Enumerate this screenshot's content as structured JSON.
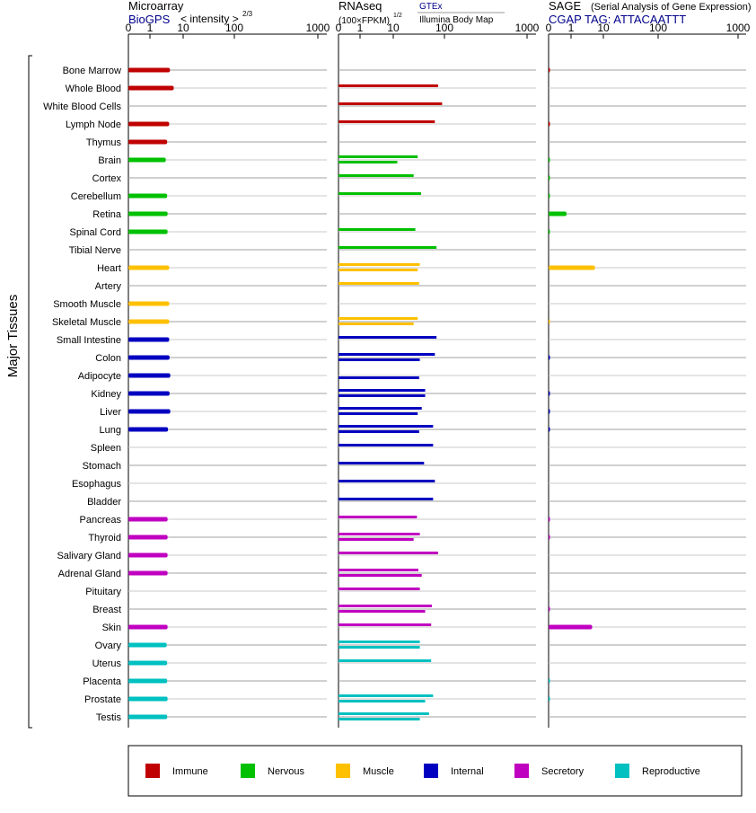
{
  "panels": {
    "microarray": {
      "title": "Microarray",
      "source": "BioGPS",
      "metric": "< intensity >",
      "exponent": "2/3"
    },
    "rnaseq": {
      "title": "RNAseq",
      "metric": "(100×FPKM)",
      "exponent": "1/2",
      "source_1": "GTEx",
      "source_2": "Illumina Body Map"
    },
    "sage": {
      "title": "SAGE",
      "subtitle": "(Serial Analysis of Gene Expression)",
      "tag": "CGAP TAG: ATTACAATTT"
    }
  },
  "axis_ticks": [
    "0",
    "1",
    "10",
    "100",
    "1000"
  ],
  "y_group_label": "Major Tissues",
  "colors": {
    "Immune": "#c00000",
    "Nervous": "#00c000",
    "Muscle": "#ffc000",
    "Internal": "#0000c0",
    "Secretory": "#c000c0",
    "Reproductive": "#00c0c0"
  },
  "legend": [
    "Immune",
    "Nervous",
    "Muscle",
    "Internal",
    "Secretory",
    "Reproductive"
  ],
  "chart_data": {
    "type": "bar",
    "orientation": "horizontal",
    "x_scale": "log-like (0, 1, 10, 100, 1000)",
    "xlim": [
      0,
      1000
    ],
    "categories": [
      "Bone Marrow",
      "Whole Blood",
      "White Blood Cells",
      "Lymph Node",
      "Thymus",
      "Brain",
      "Cortex",
      "Cerebellum",
      "Retina",
      "Spinal Cord",
      "Tibial Nerve",
      "Heart",
      "Artery",
      "Smooth Muscle",
      "Skeletal Muscle",
      "Small Intestine",
      "Colon",
      "Adipocyte",
      "Kidney",
      "Liver",
      "Lung",
      "Spleen",
      "Stomach",
      "Esophagus",
      "Bladder",
      "Pancreas",
      "Thyroid",
      "Salivary Gland",
      "Adrenal Gland",
      "Pituitary",
      "Breast",
      "Skin",
      "Ovary",
      "Uterus",
      "Placenta",
      "Prostate",
      "Testis"
    ],
    "groups": [
      "Immune",
      "Immune",
      "Immune",
      "Immune",
      "Immune",
      "Nervous",
      "Nervous",
      "Nervous",
      "Nervous",
      "Nervous",
      "Nervous",
      "Muscle",
      "Muscle",
      "Muscle",
      "Muscle",
      "Internal",
      "Internal",
      "Internal",
      "Internal",
      "Internal",
      "Internal",
      "Internal",
      "Internal",
      "Internal",
      "Internal",
      "Secretory",
      "Secretory",
      "Secretory",
      "Secretory",
      "Secretory",
      "Secretory",
      "Secretory",
      "Reproductive",
      "Reproductive",
      "Reproductive",
      "Reproductive",
      "Reproductive"
    ],
    "series": [
      {
        "name": "Microarray",
        "values": [
          4.0,
          5.2,
          null,
          3.8,
          3.3,
          3.0,
          null,
          3.3,
          3.4,
          3.4,
          null,
          3.8,
          null,
          3.8,
          3.8,
          3.8,
          3.9,
          4.1,
          3.9,
          4.1,
          3.5,
          null,
          null,
          null,
          null,
          3.4,
          3.4,
          3.4,
          3.4,
          null,
          null,
          3.4,
          3.2,
          3.3,
          3.3,
          3.4,
          3.3
        ]
      },
      {
        "name": "GTEx",
        "values": [
          null,
          75,
          90,
          65,
          null,
          30,
          25,
          35,
          null,
          27,
          70,
          33,
          32,
          null,
          30,
          70,
          65,
          null,
          42,
          36,
          60,
          60,
          40,
          65,
          60,
          29,
          33,
          75,
          31,
          33,
          57,
          55,
          33,
          55,
          null,
          60,
          50
        ]
      },
      {
        "name": "Illumina Body Map",
        "values": [
          null,
          null,
          null,
          null,
          null,
          12,
          null,
          null,
          null,
          null,
          null,
          30,
          null,
          null,
          25,
          null,
          33,
          32,
          42,
          30,
          32,
          null,
          null,
          null,
          null,
          null,
          25,
          null,
          36,
          null,
          42,
          null,
          33,
          null,
          null,
          42,
          33
        ]
      },
      {
        "name": "SAGE",
        "values": [
          0.02,
          null,
          null,
          0.02,
          null,
          0.02,
          0.02,
          0.02,
          0.8,
          0.02,
          null,
          5.5,
          null,
          null,
          0.02,
          null,
          0.02,
          null,
          0.02,
          0.02,
          0.02,
          null,
          null,
          null,
          null,
          0.02,
          0.02,
          null,
          null,
          null,
          0.02,
          4.5,
          null,
          null,
          0.02,
          0.02,
          null
        ]
      }
    ]
  }
}
